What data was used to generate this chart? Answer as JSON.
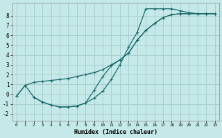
{
  "xlabel": "Humidex (Indice chaleur)",
  "background_color": "#c5e8e8",
  "grid_color": "#aacfcf",
  "line_color": "#1a6b6b",
  "xlim": [
    -0.5,
    23.5
  ],
  "ylim": [
    -2.7,
    9.3
  ],
  "xticks": [
    0,
    1,
    2,
    3,
    4,
    5,
    6,
    7,
    8,
    9,
    10,
    11,
    12,
    13,
    14,
    15,
    16,
    17,
    18,
    19,
    20,
    21,
    22,
    23
  ],
  "yticks": [
    -2,
    -1,
    0,
    1,
    2,
    3,
    4,
    5,
    6,
    7,
    8
  ],
  "line1_x": [
    0,
    1,
    2,
    3,
    4,
    5,
    6,
    7,
    8,
    9,
    10,
    11,
    12,
    13,
    14,
    15,
    16,
    17,
    18,
    19,
    20,
    21,
    22,
    23
  ],
  "line1_y": [
    -0.2,
    0.9,
    1.2,
    1.3,
    1.4,
    1.5,
    1.6,
    1.8,
    2.0,
    2.2,
    2.5,
    3.0,
    3.5,
    4.2,
    5.5,
    6.5,
    7.2,
    7.8,
    8.1,
    8.2,
    8.2,
    8.2,
    8.2,
    8.2
  ],
  "line2_x": [
    0,
    1,
    2,
    3,
    4,
    5,
    6,
    7,
    8,
    9,
    10,
    11,
    12,
    13,
    14,
    15,
    16,
    17,
    18,
    19,
    20,
    21,
    22,
    23
  ],
  "line2_y": [
    -0.2,
    0.9,
    -0.3,
    -0.8,
    -1.1,
    -1.3,
    -1.3,
    -1.2,
    -0.9,
    -0.4,
    0.3,
    1.5,
    3.0,
    4.8,
    6.3,
    8.7,
    8.7,
    8.7,
    8.7,
    8.5,
    8.3,
    8.2,
    8.2,
    8.2
  ],
  "line3_x": [
    2,
    3,
    4,
    5,
    6,
    7,
    8,
    9,
    10,
    11,
    12,
    13,
    14,
    15,
    16,
    17,
    18,
    19,
    20,
    21,
    22,
    23
  ],
  "line3_y": [
    -0.3,
    -0.8,
    -1.1,
    -1.3,
    -1.3,
    -1.2,
    -0.9,
    0.4,
    1.8,
    2.9,
    3.5,
    4.2,
    5.5,
    6.5,
    7.2,
    7.8,
    8.1,
    8.2,
    8.2,
    8.2,
    8.2,
    8.2
  ]
}
